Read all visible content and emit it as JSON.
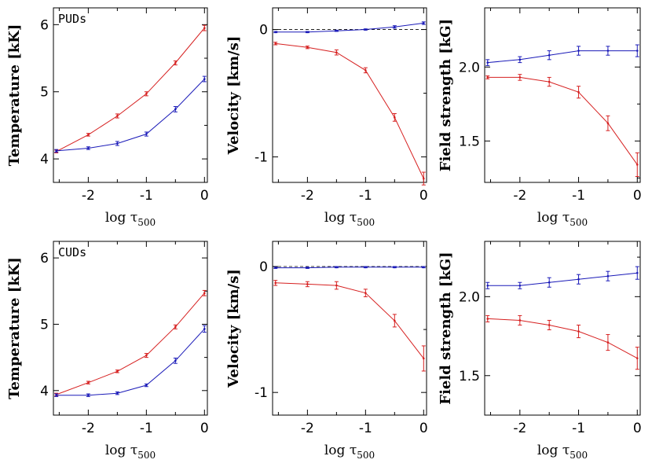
{
  "colors": {
    "red": "#d62020",
    "blue": "#1a1ab8",
    "frame": "#000000",
    "zero_line": "#000000"
  },
  "chart_data": [
    {
      "type": "line",
      "row": 0,
      "col": 0,
      "panel_label": "PUDs",
      "ylabel": "Temperature [kK]",
      "xlabel": "log τ",
      "xlim": [
        -2.6,
        0.05
      ],
      "ylim": [
        3.65,
        6.25
      ],
      "xticks": [
        -2,
        -1,
        0
      ],
      "xtick_labels": [
        "-2",
        "-1",
        "0"
      ],
      "yticks": [
        4,
        5,
        6
      ],
      "ytick_labels": [
        "4",
        "5",
        "6"
      ],
      "zero_line": false,
      "x": [
        -2.55,
        -2,
        -1.5,
        -1,
        -0.5,
        0
      ],
      "series": [
        {
          "name": "red",
          "color": "#d62020",
          "values": [
            4.11,
            4.36,
            4.64,
            4.97,
            5.43,
            5.95
          ],
          "errors": [
            0.02,
            0.02,
            0.03,
            0.03,
            0.03,
            0.04
          ]
        },
        {
          "name": "blue",
          "color": "#1a1ab8",
          "values": [
            4.12,
            4.16,
            4.23,
            4.37,
            4.74,
            5.19
          ],
          "errors": [
            0.02,
            0.02,
            0.03,
            0.03,
            0.04,
            0.04
          ]
        }
      ]
    },
    {
      "type": "line",
      "row": 0,
      "col": 1,
      "panel_label": "",
      "ylabel": "Velocity [km/s]",
      "xlabel": "log τ",
      "xlim": [
        -2.6,
        0.05
      ],
      "ylim": [
        -1.2,
        0.17
      ],
      "xticks": [
        -2,
        -1,
        0
      ],
      "xtick_labels": [
        "-2",
        "-1",
        "0"
      ],
      "yticks": [
        0,
        -1
      ],
      "ytick_labels": [
        "0",
        "-1"
      ],
      "zero_line": true,
      "x": [
        -2.55,
        -2,
        -1.5,
        -1,
        -0.5,
        0
      ],
      "series": [
        {
          "name": "red",
          "color": "#d62020",
          "values": [
            -0.11,
            -0.14,
            -0.18,
            -0.32,
            -0.69,
            -1.17
          ],
          "errors": [
            0.01,
            0.01,
            0.02,
            0.02,
            0.03,
            0.05
          ]
        },
        {
          "name": "blue",
          "color": "#1a1ab8",
          "values": [
            -0.02,
            -0.02,
            -0.01,
            0.0,
            0.02,
            0.05
          ],
          "errors": [
            0.005,
            0.005,
            0.005,
            0.005,
            0.01,
            0.01
          ]
        }
      ]
    },
    {
      "type": "line",
      "row": 0,
      "col": 2,
      "panel_label": "",
      "ylabel": "Field strength [kG]",
      "xlabel": "log τ",
      "xlim": [
        -2.6,
        0.05
      ],
      "ylim": [
        1.22,
        2.4
      ],
      "xticks": [
        -2,
        -1,
        0
      ],
      "xtick_labels": [
        "-2",
        "-1",
        "0"
      ],
      "yticks": [
        2.0,
        1.5
      ],
      "ytick_labels": [
        "2.0",
        "1.5"
      ],
      "zero_line": false,
      "x": [
        -2.55,
        -2,
        -1.5,
        -1,
        -0.5,
        0
      ],
      "series": [
        {
          "name": "red",
          "color": "#d62020",
          "values": [
            1.93,
            1.93,
            1.9,
            1.83,
            1.62,
            1.34
          ],
          "errors": [
            0.01,
            0.02,
            0.03,
            0.04,
            0.05,
            0.08
          ]
        },
        {
          "name": "blue",
          "color": "#1a1ab8",
          "values": [
            2.03,
            2.05,
            2.08,
            2.11,
            2.11,
            2.11
          ],
          "errors": [
            0.02,
            0.02,
            0.03,
            0.03,
            0.03,
            0.04
          ]
        }
      ]
    },
    {
      "type": "line",
      "row": 1,
      "col": 0,
      "panel_label": "CUDs",
      "ylabel": "Temperature [kK]",
      "xlabel": "log τ",
      "xlim": [
        -2.6,
        0.05
      ],
      "ylim": [
        3.63,
        6.25
      ],
      "xticks": [
        -2,
        -1,
        0
      ],
      "xtick_labels": [
        "-2",
        "-1",
        "0"
      ],
      "yticks": [
        4,
        5,
        6
      ],
      "ytick_labels": [
        "4",
        "5",
        "6"
      ],
      "zero_line": false,
      "x": [
        -2.55,
        -2,
        -1.5,
        -1,
        -0.5,
        0
      ],
      "series": [
        {
          "name": "red",
          "color": "#d62020",
          "values": [
            3.94,
            4.12,
            4.29,
            4.53,
            4.96,
            5.47
          ],
          "errors": [
            0.02,
            0.02,
            0.02,
            0.03,
            0.03,
            0.04
          ]
        },
        {
          "name": "blue",
          "color": "#1a1ab8",
          "values": [
            3.93,
            3.93,
            3.96,
            4.08,
            4.45,
            4.93
          ],
          "errors": [
            0.02,
            0.02,
            0.02,
            0.02,
            0.04,
            0.05
          ]
        }
      ]
    },
    {
      "type": "line",
      "row": 1,
      "col": 1,
      "panel_label": "",
      "ylabel": "Velocity [km/s]",
      "xlabel": "log τ",
      "xlim": [
        -2.6,
        0.05
      ],
      "ylim": [
        -1.18,
        0.2
      ],
      "xticks": [
        -2,
        -1,
        0
      ],
      "xtick_labels": [
        "-2",
        "-1",
        "0"
      ],
      "yticks": [
        0,
        -1
      ],
      "ytick_labels": [
        "0",
        "-1"
      ],
      "zero_line": true,
      "x": [
        -2.55,
        -2,
        -1.5,
        -1,
        -0.5,
        0
      ],
      "series": [
        {
          "name": "red",
          "color": "#d62020",
          "values": [
            -0.13,
            -0.14,
            -0.15,
            -0.21,
            -0.43,
            -0.73
          ],
          "errors": [
            0.02,
            0.02,
            0.03,
            0.03,
            0.05,
            0.1
          ]
        },
        {
          "name": "blue",
          "color": "#1a1ab8",
          "values": [
            -0.01,
            -0.01,
            -0.005,
            -0.005,
            -0.005,
            -0.005
          ],
          "errors": [
            0.005,
            0.005,
            0.005,
            0.005,
            0.005,
            0.005
          ]
        }
      ]
    },
    {
      "type": "line",
      "row": 1,
      "col": 2,
      "panel_label": "",
      "ylabel": "Field strength [kG]",
      "xlabel": "log τ",
      "xlim": [
        -2.6,
        0.05
      ],
      "ylim": [
        1.25,
        2.35
      ],
      "xticks": [
        -2,
        -1,
        0
      ],
      "xtick_labels": [
        "-2",
        "-1",
        "0"
      ],
      "yticks": [
        2.0,
        1.5
      ],
      "ytick_labels": [
        "2.0",
        "1.5"
      ],
      "zero_line": false,
      "x": [
        -2.55,
        -2,
        -1.5,
        -1,
        -0.5,
        0
      ],
      "series": [
        {
          "name": "red",
          "color": "#d62020",
          "values": [
            1.86,
            1.85,
            1.82,
            1.78,
            1.71,
            1.61
          ],
          "errors": [
            0.02,
            0.03,
            0.03,
            0.04,
            0.05,
            0.07
          ]
        },
        {
          "name": "blue",
          "color": "#1a1ab8",
          "values": [
            2.07,
            2.07,
            2.09,
            2.11,
            2.13,
            2.15
          ],
          "errors": [
            0.02,
            0.02,
            0.03,
            0.03,
            0.03,
            0.04
          ]
        }
      ]
    }
  ],
  "xlabel_subscript": "500"
}
